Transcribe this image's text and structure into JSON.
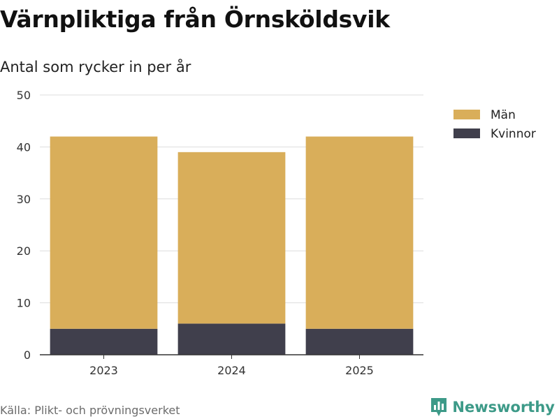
{
  "header": {
    "title": "Värnpliktiga från Örnsköldsvik",
    "subtitle": "Antal som rycker in per år"
  },
  "footer": {
    "source": "Källa: Plikt- och prövningsverket",
    "brand": "Newsworthy"
  },
  "colors": {
    "men": "#d9ae5a",
    "women": "#403f4c",
    "grid": "#dddddd",
    "axis": "#333333",
    "brand": "#3d9a88"
  },
  "chart_data": {
    "type": "bar",
    "stacked": true,
    "categories": [
      "2023",
      "2024",
      "2025"
    ],
    "series": [
      {
        "name": "Kvinnor",
        "values": [
          5,
          6,
          5
        ],
        "color": "#403f4c"
      },
      {
        "name": "Män",
        "values": [
          37,
          33,
          37
        ],
        "color": "#d9ae5a"
      }
    ],
    "ylim": [
      0,
      50
    ],
    "yticks": [
      0,
      10,
      20,
      30,
      40,
      50
    ],
    "grid": true,
    "legend": {
      "position": "right",
      "order": [
        "Män",
        "Kvinnor"
      ]
    },
    "xlabel": "",
    "ylabel": ""
  }
}
